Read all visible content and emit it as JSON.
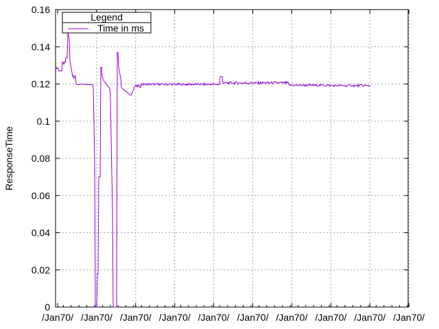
{
  "chart_data": {
    "type": "line",
    "title": "",
    "xlabel": "",
    "ylabel": "ResponseTime",
    "ylim": [
      0,
      0.16
    ],
    "y_ticks": [
      "0",
      "0.02",
      "0.04",
      "0.06",
      "0.08",
      "0.1",
      "0.12",
      "0.14",
      "0.16"
    ],
    "y_tick_values": [
      0,
      0.02,
      0.04,
      0.06,
      0.08,
      0.1,
      0.12,
      0.14,
      0.16
    ],
    "x_tick_labels": [
      "/Jan70/",
      "/Jan70/",
      "/Jan70/",
      "/Jan70/",
      "/Jan70/",
      "/Jan70/",
      "/Jan70/",
      "/Jan70/",
      "/Jan70/",
      "/Jan70/"
    ],
    "grid": true,
    "legend": {
      "title": "Legend",
      "position": "top-left"
    },
    "series": [
      {
        "name": "Time in ms",
        "color": "#9400d3",
        "x": [
          0,
          1,
          2,
          3,
          4,
          5,
          6,
          7,
          8,
          9,
          10,
          11,
          12,
          13,
          14,
          15,
          16,
          17,
          18,
          19,
          20,
          21,
          22,
          23,
          24,
          25,
          26,
          27,
          28,
          29,
          30,
          31,
          32,
          33,
          34,
          35,
          36,
          37,
          38,
          39,
          40,
          41,
          42,
          43,
          44,
          45,
          46,
          47,
          48,
          49,
          50,
          51,
          52,
          53,
          54,
          55,
          56,
          57,
          58,
          59,
          60,
          61,
          62,
          63,
          64,
          65,
          66,
          67,
          68,
          69,
          70,
          71,
          72,
          73,
          74,
          75,
          76,
          77,
          78,
          79,
          80,
          81,
          82,
          83,
          84,
          85,
          86,
          87,
          88,
          89,
          90,
          91,
          92,
          93,
          94,
          95,
          96,
          97,
          98,
          99,
          100,
          101,
          102,
          103,
          104,
          105,
          106,
          107,
          108,
          109,
          110,
          111,
          112,
          113,
          114,
          115,
          116,
          117,
          118,
          119,
          120,
          121,
          122,
          123,
          124,
          125,
          126,
          127,
          128,
          129,
          130,
          131,
          132,
          133,
          134,
          135,
          136,
          137,
          138,
          139,
          140,
          141,
          142,
          143,
          144,
          145,
          146,
          147,
          148,
          149,
          150,
          151,
          152,
          153,
          154,
          155,
          156,
          157,
          158,
          159,
          160,
          161,
          162,
          163,
          164,
          165,
          166,
          167,
          168,
          169,
          170,
          171,
          172,
          173,
          174,
          175,
          176,
          177,
          178,
          179,
          180,
          181,
          182,
          183,
          184,
          185,
          186,
          187,
          188,
          189,
          190,
          191,
          192,
          193,
          194,
          195,
          196,
          197,
          198,
          199,
          200,
          201,
          202,
          203,
          204,
          205,
          206,
          207,
          208,
          209,
          210,
          211,
          212,
          213,
          214,
          215,
          216,
          217,
          218,
          219,
          220,
          221,
          222,
          223,
          224,
          225,
          226,
          227,
          228,
          229,
          230,
          231,
          232,
          233,
          234,
          235,
          236,
          237,
          238,
          239,
          240,
          241,
          242,
          243,
          244,
          245,
          246,
          247,
          248,
          249,
          250,
          251,
          252,
          253,
          254,
          255,
          256,
          257,
          258,
          259,
          260,
          261,
          262,
          263,
          264,
          265,
          266,
          267,
          268,
          269,
          270,
          271,
          272,
          273,
          274,
          275,
          276,
          277,
          278,
          279,
          280,
          281,
          282,
          283,
          284,
          285,
          286,
          287,
          288,
          289,
          290,
          291,
          292,
          293,
          294,
          295,
          296,
          297,
          298,
          299,
          300,
          301,
          302,
          303,
          304,
          305,
          306,
          307,
          308,
          309,
          310,
          311,
          312,
          313,
          314,
          315,
          316,
          317,
          318,
          319,
          320,
          321,
          322,
          323,
          324,
          325,
          326,
          327,
          328,
          329,
          330,
          331,
          332,
          333,
          334,
          335,
          336,
          337,
          338,
          339,
          340,
          341,
          342,
          343,
          344,
          345,
          346,
          347,
          348,
          349,
          350,
          351,
          352,
          353,
          354,
          355,
          356,
          357,
          358,
          359,
          360,
          361,
          362,
          363,
          364,
          365,
          366,
          367,
          368,
          369,
          370,
          371,
          372,
          373,
          374,
          375,
          376,
          377,
          378,
          379,
          380,
          381,
          382,
          383,
          384,
          385,
          386,
          387,
          388,
          389,
          390,
          391,
          392,
          393,
          394,
          395,
          396,
          397,
          398,
          399,
          400,
          401,
          402,
          403,
          404,
          405,
          406,
          407,
          408,
          409,
          410,
          411,
          412,
          413,
          414,
          415,
          416,
          417,
          418,
          419,
          420,
          421,
          422,
          423,
          424,
          425,
          426,
          427,
          428,
          429,
          430,
          431,
          432,
          433,
          434,
          435,
          436,
          437,
          438,
          439,
          440,
          441,
          442,
          443,
          444,
          445,
          446,
          447,
          448,
          449,
          450,
          451,
          452,
          453,
          454,
          455,
          456,
          457,
          458,
          459,
          460,
          461,
          462,
          463,
          464,
          465,
          466,
          467,
          468,
          469,
          470,
          471,
          472,
          473,
          474,
          475,
          476,
          477,
          478,
          479,
          480,
          481,
          482,
          483,
          484,
          485,
          486,
          487,
          488,
          489,
          490,
          491,
          492,
          493,
          494,
          495,
          496,
          497,
          498,
          499,
          500,
          501,
          502,
          503,
          504,
          505,
          506,
          507,
          508,
          509,
          510,
          511,
          512,
          513,
          514,
          515
        ],
        "x_range": [
          0,
          579
        ]
      }
    ]
  }
}
